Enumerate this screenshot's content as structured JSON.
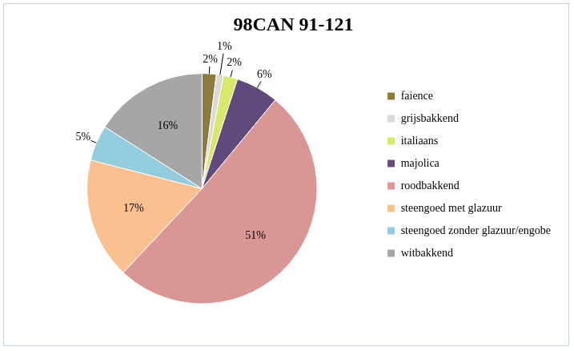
{
  "chart_data": {
    "type": "pie",
    "title": "98CAN 91-121",
    "categories": [
      "faience",
      "grijsbakkend",
      "italiaans",
      "majolica",
      "roodbakkend",
      "steengoed met glazuur",
      "steengoed zonder glazuur/engobe",
      "witbakkend"
    ],
    "values": [
      2,
      1,
      2,
      6,
      51,
      17,
      5,
      16
    ],
    "value_labels": [
      "2%",
      "1%",
      "2%",
      "6%",
      "51%",
      "17%",
      "5%",
      "16%"
    ],
    "colors": [
      "#8c7a3e",
      "#d9d9d9",
      "#d7e86a",
      "#604a7b",
      "#d99694",
      "#fac090",
      "#93cddd",
      "#a6a6a6"
    ],
    "legend": "right",
    "data_labels": true
  }
}
